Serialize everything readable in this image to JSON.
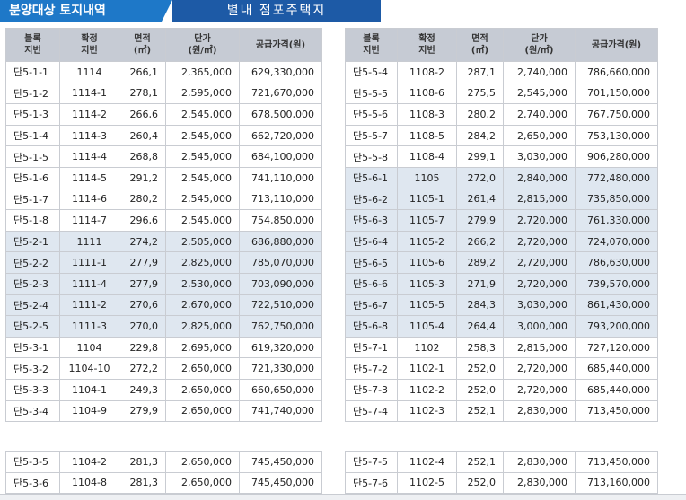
{
  "header": {
    "tab_left": "분양대상 토지내역",
    "tab_right": "별내 점포주택지"
  },
  "columns": [
    "블록\n지번",
    "확정\n지번",
    "면적\n(㎡)",
    "단가\n(원/㎡)",
    "공급가격(원)"
  ],
  "left_rows": [
    [
      "단5-1-1",
      "1114",
      "266,1",
      "2,365,000",
      "629,330,000"
    ],
    [
      "단5-1-2",
      "1114-1",
      "278,1",
      "2,595,000",
      "721,670,000"
    ],
    [
      "단5-1-3",
      "1114-2",
      "266,6",
      "2,545,000",
      "678,500,000"
    ],
    [
      "단5-1-4",
      "1114-3",
      "260,4",
      "2,545,000",
      "662,720,000"
    ],
    [
      "단5-1-5",
      "1114-4",
      "268,8",
      "2,545,000",
      "684,100,000"
    ],
    [
      "단5-1-6",
      "1114-5",
      "291,2",
      "2,545,000",
      "741,110,000"
    ],
    [
      "단5-1-7",
      "1114-6",
      "280,2",
      "2,545,000",
      "713,110,000"
    ],
    [
      "단5-1-8",
      "1114-7",
      "296,6",
      "2,545,000",
      "754,850,000"
    ],
    [
      "단5-2-1",
      "1111",
      "274,2",
      "2,505,000",
      "686,880,000"
    ],
    [
      "단5-2-2",
      "1111-1",
      "277,9",
      "2,825,000",
      "785,070,000"
    ],
    [
      "단5-2-3",
      "1111-4",
      "277,9",
      "2,530,000",
      "703,090,000"
    ],
    [
      "단5-2-4",
      "1111-2",
      "270,6",
      "2,670,000",
      "722,510,000"
    ],
    [
      "단5-2-5",
      "1111-3",
      "270,0",
      "2,825,000",
      "762,750,000"
    ],
    [
      "단5-3-1",
      "1104",
      "229,8",
      "2,695,000",
      "619,320,000"
    ],
    [
      "단5-3-2",
      "1104-10",
      "272,2",
      "2,650,000",
      "721,330,000"
    ],
    [
      "단5-3-3",
      "1104-1",
      "249,3",
      "2,650,000",
      "660,650,000"
    ],
    [
      "단5-3-4",
      "1104-9",
      "279,9",
      "2,650,000",
      "741,740,000"
    ]
  ],
  "left_rows_2": [
    [
      "단5-3-5",
      "1104-2",
      "281,3",
      "2,650,000",
      "745,450,000"
    ],
    [
      "단5-3-6",
      "1104-8",
      "281,3",
      "2,650,000",
      "745,450,000"
    ]
  ],
  "right_rows": [
    [
      "단5-5-4",
      "1108-2",
      "287,1",
      "2,740,000",
      "786,660,000"
    ],
    [
      "단5-5-5",
      "1108-6",
      "275,5",
      "2,545,000",
      "701,150,000"
    ],
    [
      "단5-5-6",
      "1108-3",
      "280,2",
      "2,740,000",
      "767,750,000"
    ],
    [
      "단5-5-7",
      "1108-5",
      "284,2",
      "2,650,000",
      "753,130,000"
    ],
    [
      "단5-5-8",
      "1108-4",
      "299,1",
      "3,030,000",
      "906,280,000"
    ],
    [
      "단5-6-1",
      "1105",
      "272,0",
      "2,840,000",
      "772,480,000"
    ],
    [
      "단5-6-2",
      "1105-1",
      "261,4",
      "2,815,000",
      "735,850,000"
    ],
    [
      "단5-6-3",
      "1105-7",
      "279,9",
      "2,720,000",
      "761,330,000"
    ],
    [
      "단5-6-4",
      "1105-2",
      "266,2",
      "2,720,000",
      "724,070,000"
    ],
    [
      "단5-6-5",
      "1105-6",
      "289,2",
      "2,720,000",
      "786,630,000"
    ],
    [
      "단5-6-6",
      "1105-3",
      "271,9",
      "2,720,000",
      "739,570,000"
    ],
    [
      "단5-6-7",
      "1105-5",
      "284,3",
      "3,030,000",
      "861,430,000"
    ],
    [
      "단5-6-8",
      "1105-4",
      "264,4",
      "3,000,000",
      "793,200,000"
    ],
    [
      "단5-7-1",
      "1102",
      "258,3",
      "2,815,000",
      "727,120,000"
    ],
    [
      "단5-7-2",
      "1102-1",
      "252,0",
      "2,720,000",
      "685,440,000"
    ],
    [
      "단5-7-3",
      "1102-2",
      "252,0",
      "2,720,000",
      "685,440,000"
    ],
    [
      "단5-7-4",
      "1102-3",
      "252,1",
      "2,830,000",
      "713,450,000"
    ]
  ],
  "right_rows_2": [
    [
      "단5-7-5",
      "1102-4",
      "252,1",
      "2,830,000",
      "713,450,000"
    ],
    [
      "단5-7-6",
      "1102-5",
      "252,0",
      "2,830,000",
      "713,160,000"
    ]
  ],
  "shaded_left": [
    8,
    9,
    10,
    11,
    12
  ],
  "shaded_right": [
    5,
    6,
    7,
    8,
    9,
    10,
    11,
    12
  ],
  "colors": {
    "header_left": "#1e78c8",
    "header_right": "#1d5aa6",
    "table_header": "#c6cbd4",
    "row_shade": "#dfe7f0"
  }
}
